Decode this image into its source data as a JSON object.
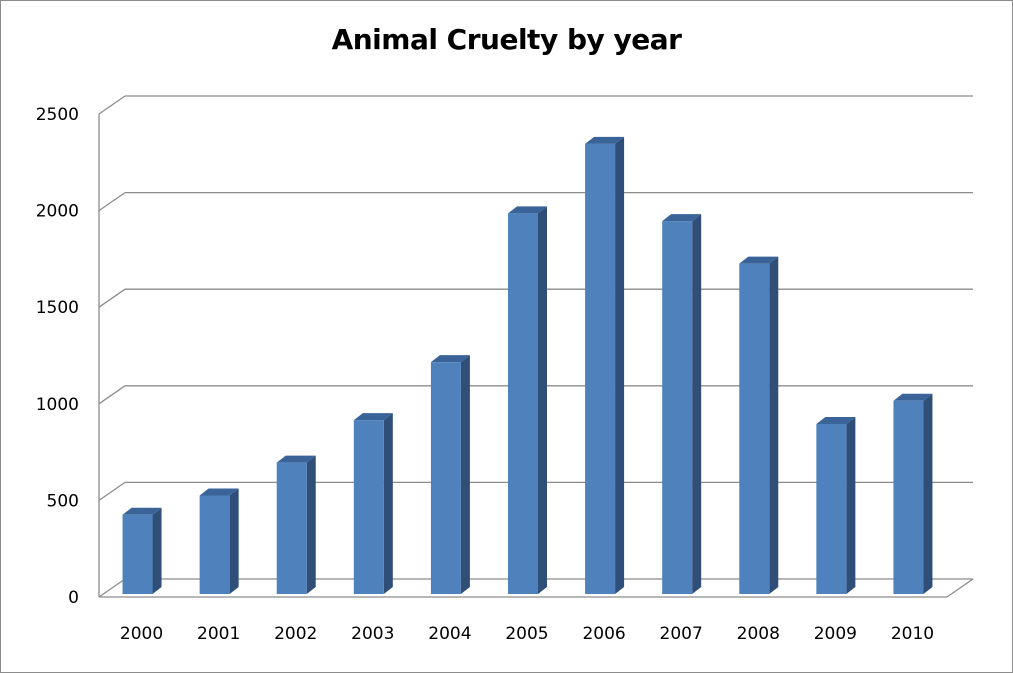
{
  "chart_data": {
    "type": "bar",
    "title": "Animal Cruelty by year",
    "xlabel": "",
    "ylabel": "",
    "categories": [
      "2000",
      "2001",
      "2002",
      "2003",
      "2004",
      "2005",
      "2006",
      "2007",
      "2008",
      "2009",
      "2010"
    ],
    "values": [
      410,
      510,
      680,
      900,
      1200,
      1970,
      2330,
      1930,
      1710,
      880,
      1000
    ],
    "ylim": [
      0,
      2500
    ],
    "yticks": [
      0,
      500,
      1000,
      1500,
      2000,
      2500
    ],
    "ytick_labels": [
      "0",
      "500",
      "1000",
      "1500",
      "2000",
      "2500"
    ],
    "grid": true,
    "legend": "none",
    "style": "3d-column",
    "colors": {
      "bar_front": "#4f81bd",
      "bar_side": "#2f4f79",
      "bar_top": "#3a6398",
      "gridline": "#8c8c8c"
    }
  }
}
